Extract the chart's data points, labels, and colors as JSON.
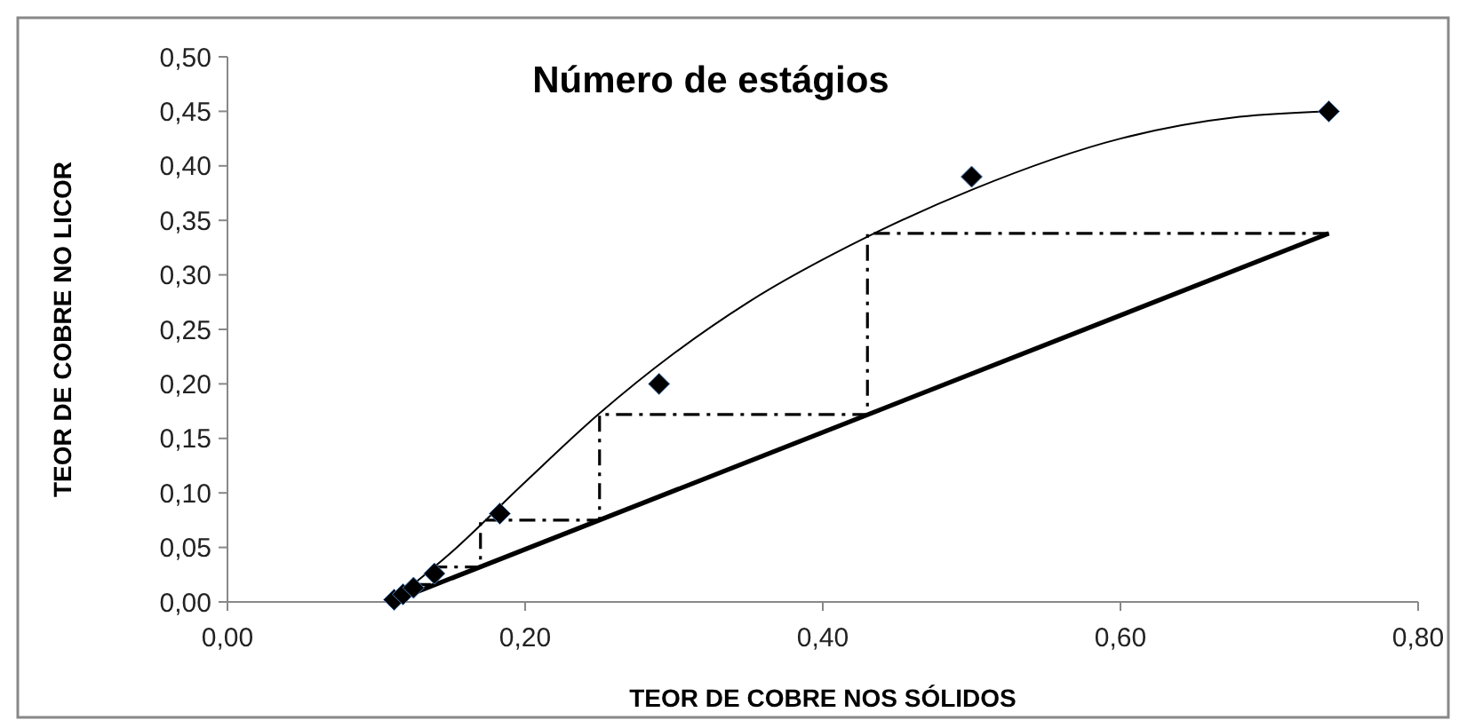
{
  "chart_data": {
    "type": "scatter",
    "title": "Número de estágios",
    "xlabel": "TEOR DE COBRE NOS SÓLIDOS",
    "ylabel": "TEOR DE COBRE NO LICOR",
    "xlim": [
      0,
      0.8
    ],
    "xticks": [
      {
        "value": 0,
        "label": "0,00"
      },
      {
        "value": 0.2,
        "label": "0,20"
      },
      {
        "value": 0.4,
        "label": "0,40"
      },
      {
        "value": 0.6,
        "label": "0,60"
      },
      {
        "value": 0.8,
        "label": "0,80"
      }
    ],
    "ylim": [
      0,
      0.5
    ],
    "yticks": [
      {
        "value": 0,
        "label": "0,00"
      },
      {
        "value": 0.05,
        "label": "0,05"
      },
      {
        "value": 0.1,
        "label": "0,10"
      },
      {
        "value": 0.15,
        "label": "0,15"
      },
      {
        "value": 0.2,
        "label": "0,20"
      },
      {
        "value": 0.25,
        "label": "0,25"
      },
      {
        "value": 0.3,
        "label": "0,30"
      },
      {
        "value": 0.35,
        "label": "0,35"
      },
      {
        "value": 0.4,
        "label": "0,40"
      },
      {
        "value": 0.45,
        "label": "0,45"
      },
      {
        "value": 0.5,
        "label": "0,50"
      }
    ],
    "grid": false,
    "series": [
      {
        "type": "line",
        "color": "#000000",
        "line_style": "solid",
        "marker": "none",
        "x": [
          0.11,
          0.15,
          0.2,
          0.25,
          0.3,
          0.35,
          0.43,
          0.5,
          0.6,
          0.68,
          0.74
        ],
        "values": [
          0.0,
          0.045,
          0.11,
          0.173,
          0.228,
          0.275,
          0.335,
          0.378,
          0.425,
          0.445,
          0.45
        ]
      },
      {
        "type": "line",
        "color": "#000000",
        "line_style": "solid",
        "marker": "none",
        "x": [
          0.11,
          0.74
        ],
        "values": [
          0.0,
          0.338
        ]
      },
      {
        "type": "line",
        "color": "#000000",
        "line_style": "dashed",
        "marker": "none",
        "x": [
          0.74,
          0.43,
          0.43,
          0.25,
          0.25,
          0.17,
          0.17,
          0.14,
          0.14,
          0.125,
          0.125
        ],
        "values": [
          0.338,
          0.338,
          0.172,
          0.172,
          0.075,
          0.075,
          0.032,
          0.032,
          0.016,
          0.016,
          0.008
        ]
      },
      {
        "color": "#000000",
        "marker": "diamond",
        "x": [
          0.112,
          0.118,
          0.125,
          0.139,
          0.183,
          0.29,
          0.5,
          0.74
        ],
        "values": [
          0.002,
          0.007,
          0.013,
          0.026,
          0.081,
          0.2,
          0.39,
          0.45
        ]
      }
    ]
  }
}
